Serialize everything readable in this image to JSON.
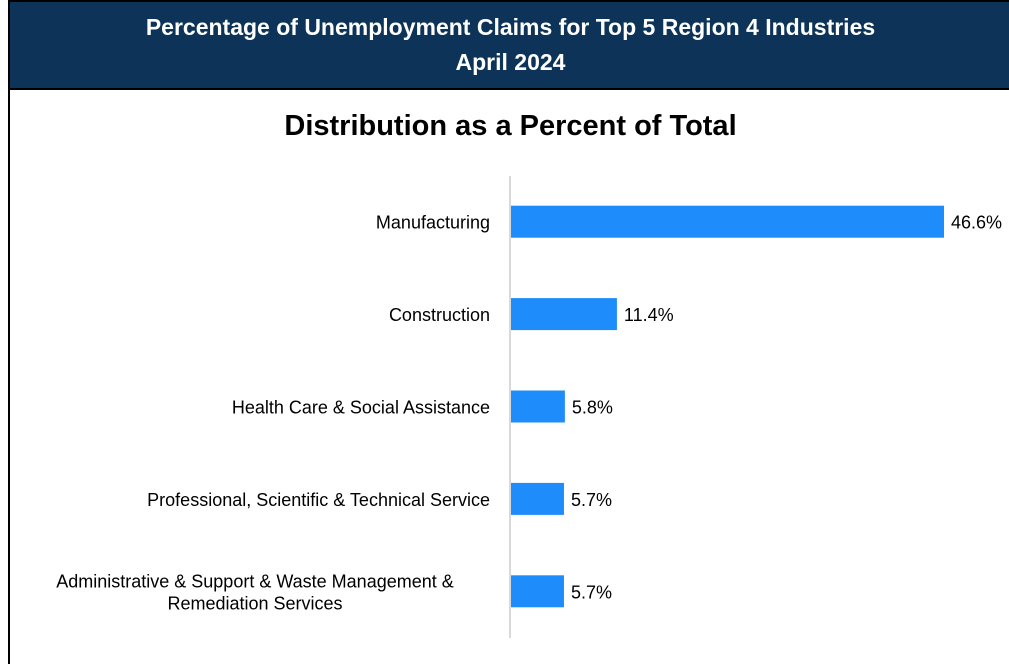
{
  "header": {
    "title_line1": "Percentage of Unemployment Claims for Top 5 Region 4 Industries",
    "title_line2": "April 2024"
  },
  "chart_data": {
    "type": "bar",
    "orientation": "horizontal",
    "title": "Distribution as a Percent of Total",
    "categories": [
      [
        "Manufacturing"
      ],
      [
        "Construction"
      ],
      [
        "Health Care & Social Assistance"
      ],
      [
        "Professional, Scientific & Technical Service"
      ],
      [
        "Administrative & Support & Waste Management &",
        "Remediation Services"
      ]
    ],
    "values": [
      46.6,
      11.4,
      5.8,
      5.7,
      5.7
    ],
    "value_labels": [
      "46.6%",
      "11.4%",
      "5.8%",
      "5.7%",
      "5.7%"
    ],
    "bar_color": "#1e8cfa",
    "xlim": [
      0,
      50
    ],
    "grid": false,
    "legend": "none"
  }
}
